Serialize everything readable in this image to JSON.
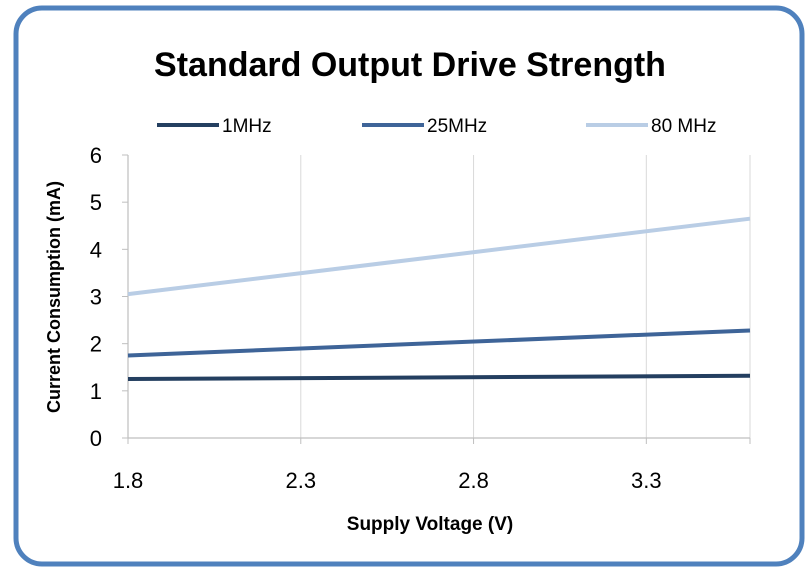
{
  "chart_data": {
    "type": "line",
    "title": "Standard Output Drive Strength",
    "xlabel": "Supply Voltage (V)",
    "ylabel": "Current Consumption (mA)",
    "xlim": [
      1.8,
      3.6
    ],
    "ylim": [
      0,
      6
    ],
    "x_ticks": [
      "1.8",
      "2.3",
      "2.8",
      "3.3"
    ],
    "y_ticks": [
      "0",
      "1",
      "2",
      "3",
      "4",
      "5",
      "6"
    ],
    "grid": "vertical",
    "legend_position": "top",
    "series": [
      {
        "name": "1MHz",
        "color": "#243F60",
        "x": [
          1.8,
          3.6
        ],
        "y": [
          1.25,
          1.32
        ]
      },
      {
        "name": "25MHz",
        "color": "#3E6498",
        "x": [
          1.8,
          3.6
        ],
        "y": [
          1.75,
          2.28
        ]
      },
      {
        "name": "80 MHz",
        "color": "#B9CDE5",
        "x": [
          1.8,
          3.6
        ],
        "y": [
          3.05,
          4.65
        ]
      }
    ]
  },
  "colors": {
    "border": "#4F81BD",
    "grid": "#D9D9D9",
    "axis": "#BFBFBF",
    "text": "#000000"
  }
}
